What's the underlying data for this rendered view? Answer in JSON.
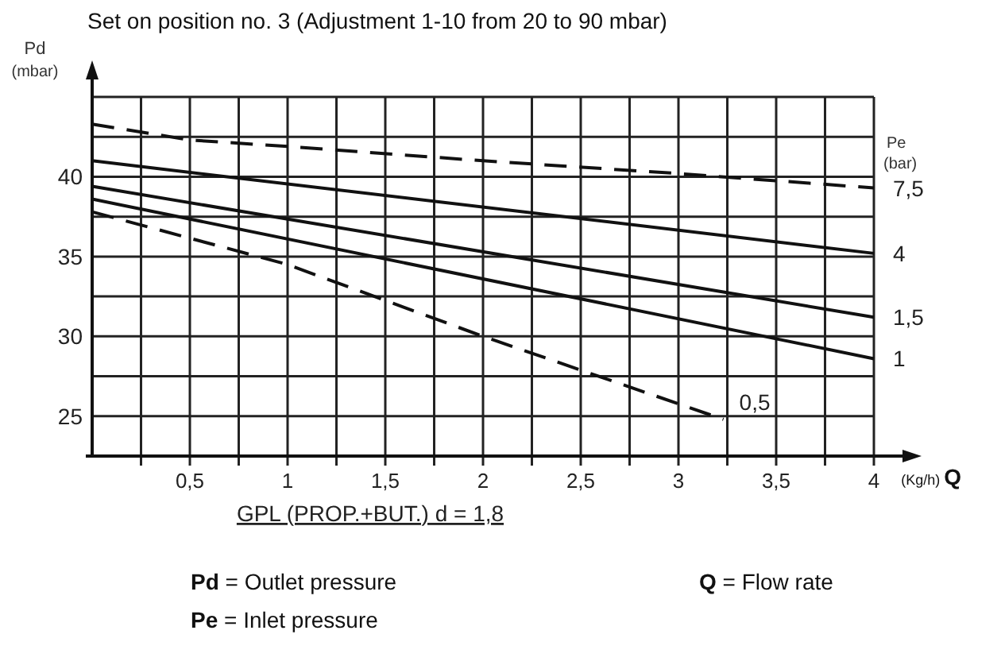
{
  "chart_data": {
    "type": "line",
    "title": "Set on position no. 3 (Adjustment 1-10 from 20 to 90 mbar)",
    "ylabel": "Pd (mbar)",
    "xlabel": "(Kg/h) Q",
    "legend_title": "Pe (bar)",
    "annotations": [
      "GPL (PROP.+BUT.) d = 1,8",
      "Pd = Outlet pressure",
      "Q = Flow rate",
      "Pe = Inlet pressure"
    ],
    "xlim": [
      0,
      4
    ],
    "ylim": [
      22.5,
      45
    ],
    "xticks": [
      {
        "value": 0.25,
        "label": null
      },
      {
        "value": 0.5,
        "label": "0,5"
      },
      {
        "value": 0.75,
        "label": null
      },
      1,
      {
        "value": 1.25,
        "label": null
      },
      {
        "value": 1.5,
        "label": "1,5"
      },
      {
        "value": 1.75,
        "label": null
      },
      2,
      {
        "value": 2.25,
        "label": null
      },
      {
        "value": 2.5,
        "label": "2,5"
      },
      {
        "value": 2.75,
        "label": null
      },
      3,
      {
        "value": 3.25,
        "label": null
      },
      {
        "value": 3.5,
        "label": "3,5"
      },
      {
        "value": 3.75,
        "label": null
      },
      4
    ],
    "yticks": [
      25,
      {
        "value": 27.5,
        "label": null
      },
      30,
      {
        "value": 32.5,
        "label": null
      },
      35,
      {
        "value": 37.5,
        "label": null
      },
      40,
      {
        "value": 42.5,
        "label": null
      },
      {
        "value": 45,
        "label": null
      }
    ],
    "grid": true,
    "marker": "none",
    "series": [
      {
        "name": "7,5",
        "color": "#111111",
        "line_style": "dashed",
        "x": [
          0,
          0.5,
          1,
          2,
          3,
          4
        ],
        "values": [
          43.3,
          42.3,
          41.9,
          41.0,
          40.2,
          39.3
        ]
      },
      {
        "name": "4",
        "color": "#111111",
        "line_style": "solid",
        "x": [
          0,
          4
        ],
        "values": [
          41.0,
          35.2
        ]
      },
      {
        "name": "1,5",
        "color": "#111111",
        "line_style": "solid",
        "x": [
          0,
          4
        ],
        "values": [
          39.4,
          31.2
        ]
      },
      {
        "name": "1",
        "color": "#111111",
        "line_style": "solid",
        "x": [
          0,
          4
        ],
        "values": [
          38.6,
          28.6
        ]
      },
      {
        "name": "0,5",
        "color": "#111111",
        "line_style": "dashed",
        "x": [
          0,
          1,
          2,
          3.23
        ],
        "values": [
          37.8,
          34.5,
          30.0,
          24.8
        ]
      }
    ]
  }
}
